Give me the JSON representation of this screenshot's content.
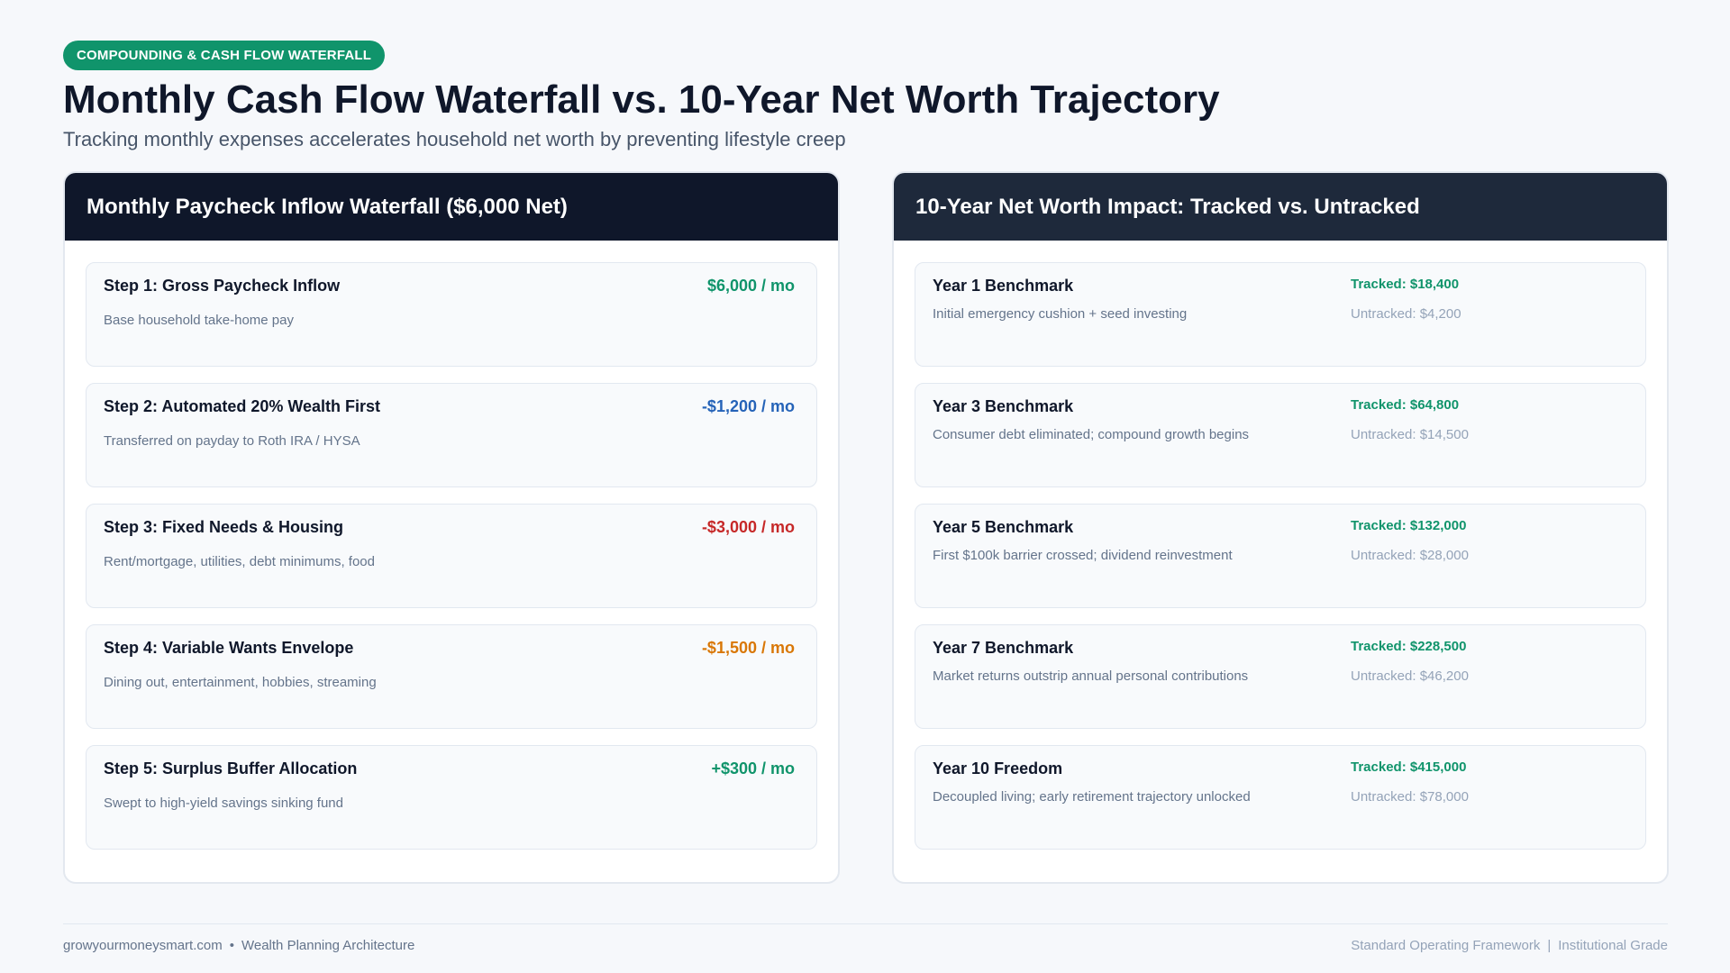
{
  "badge": "COMPOUNDING & CASH FLOW WATERFALL",
  "title": "Monthly Cash Flow Waterfall vs. 10-Year Net Worth Trajectory",
  "subtitle": "Tracking monthly expenses accelerates household net worth by preventing lifestyle creep",
  "colors": {
    "brand_green": "#10946b",
    "positive": "#10946b",
    "wealth_blue": "#2563b8",
    "needs_red": "#c62828",
    "wants_amber": "#d97706",
    "navy": "#0f172a"
  },
  "waterfall": {
    "header": "Monthly Paycheck Inflow Waterfall ($6,000 Net)",
    "steps": [
      {
        "title": "Step 1: Gross Paycheck Inflow",
        "desc": "Base household take-home pay",
        "amount": "$6,000 / mo",
        "color": "#10946b"
      },
      {
        "title": "Step 2: Automated 20% Wealth First",
        "desc": "Transferred on payday to Roth IRA / HYSA",
        "amount": "-$1,200 / mo",
        "color": "#2563b8"
      },
      {
        "title": "Step 3: Fixed Needs & Housing",
        "desc": "Rent/mortgage, utilities, debt minimums, food",
        "amount": "-$3,000 / mo",
        "color": "#c62828"
      },
      {
        "title": "Step 4: Variable Wants Envelope",
        "desc": "Dining out, entertainment, hobbies, streaming",
        "amount": "-$1,500 / mo",
        "color": "#d97706"
      },
      {
        "title": "Step 5: Surplus Buffer Allocation",
        "desc": "Swept to high-yield savings sinking fund",
        "amount": "+$300 / mo",
        "color": "#10946b"
      }
    ]
  },
  "networth": {
    "header": "10-Year Net Worth Impact: Tracked vs. Untracked",
    "benchmarks": [
      {
        "title": "Year 1 Benchmark",
        "desc": "Initial emergency cushion + seed investing",
        "tracked": "Tracked: $18,400",
        "untracked": "Untracked: $4,200"
      },
      {
        "title": "Year 3 Benchmark",
        "desc": "Consumer debt eliminated; compound growth begins",
        "tracked": "Tracked: $64,800",
        "untracked": "Untracked: $14,500"
      },
      {
        "title": "Year 5 Benchmark",
        "desc": "First $100k barrier crossed; dividend reinvestment",
        "tracked": "Tracked: $132,000",
        "untracked": "Untracked: $28,000"
      },
      {
        "title": "Year 7 Benchmark",
        "desc": "Market returns outstrip annual personal contributions",
        "tracked": "Tracked: $228,500",
        "untracked": "Untracked: $46,200"
      },
      {
        "title": "Year 10 Freedom",
        "desc": "Decoupled living; early retirement trajectory unlocked",
        "tracked": "Tracked: $415,000",
        "untracked": "Untracked: $78,000"
      }
    ]
  },
  "footer": {
    "site": "growyourmoneysmart.com",
    "bullet": "•",
    "tagline": "Wealth Planning Architecture",
    "right_a": "Standard Operating Framework",
    "divider": "|",
    "right_b": "Institutional Grade"
  }
}
